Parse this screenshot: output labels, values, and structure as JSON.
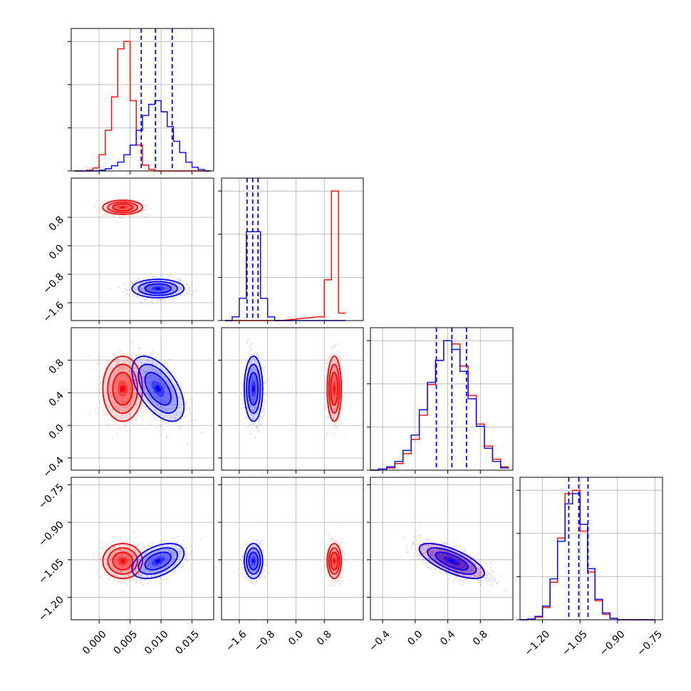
{
  "chart_data": {
    "type": "corner",
    "grid": true,
    "series": [
      {
        "color": "#0000ff",
        "quantile_lines": [
          [
            0.0068,
            0.0091,
            0.0118
          ],
          [
            -1.38,
            -1.22,
            -1.07
          ],
          [
            0.26,
            0.45,
            0.63
          ],
          [
            -1.095,
            -1.055,
            -1.018
          ]
        ]
      },
      {
        "color": "#ff0000"
      }
    ],
    "panels": {
      "ticks": {
        "p0": [
          0.0,
          0.005,
          0.01,
          0.015
        ],
        "p1": [
          -1.6,
          -0.8,
          0.0,
          0.8
        ],
        "p2": [
          -0.4,
          0.0,
          0.4,
          0.8
        ],
        "p3": [
          -1.2,
          -1.05,
          -0.9,
          -0.75
        ]
      },
      "tick_labels": {
        "p0": [
          "0.000",
          "0.005",
          "0.010",
          "0.015"
        ],
        "p1": [
          "−1.6",
          "−0.8",
          "0.0",
          "0.8"
        ],
        "p2": [
          "−0.4",
          "0.0",
          "0.4",
          "0.8"
        ],
        "p3": [
          "−1.20",
          "−1.05",
          "−0.90",
          "−0.75"
        ]
      },
      "ranges": {
        "p0": [
          -0.0045,
          0.0185
        ],
        "p1": [
          -2.1,
          1.9
        ],
        "p2": [
          -0.55,
          1.2
        ],
        "p3": [
          -1.29,
          -0.72
        ]
      },
      "diagonal_hist": [
        {
          "bins": [
            -0.0035,
            -0.0025,
            -0.0015,
            -0.0005,
            0.0005,
            0.0015,
            0.0025,
            0.0035,
            0.0045,
            0.0055,
            0.0065,
            0.0075,
            0.0085,
            0.0095,
            0.0105,
            0.0115,
            0.0125,
            0.0135,
            0.0145,
            0.0155,
            0.0165,
            0.0175
          ],
          "blue": [
            0,
            0,
            0,
            0,
            1,
            3,
            7,
            12,
            22,
            35,
            55,
            75,
            90,
            95,
            80,
            60,
            40,
            25,
            12,
            5,
            2,
            0
          ],
          "red": [
            0,
            0,
            1,
            4,
            22,
            55,
            100,
            165,
            175,
            95,
            35,
            8,
            2,
            0,
            0,
            0,
            0,
            0,
            0,
            0,
            0,
            0
          ]
        },
        {
          "bins": [
            -1.9,
            -1.7,
            -1.5,
            -1.3,
            -1.1,
            -0.9,
            -0.7,
            -0.5,
            0.7,
            0.9,
            1.1,
            1.3
          ],
          "blue": [
            0,
            5,
            30,
            120,
            120,
            30,
            5,
            0,
            0,
            0,
            0,
            0
          ],
          "red": [
            0,
            0,
            0,
            0,
            0,
            0,
            0,
            0,
            5,
            55,
            175,
            10
          ]
        },
        {
          "bins": [
            -0.5,
            -0.4,
            -0.3,
            -0.2,
            -0.1,
            0.0,
            0.1,
            0.2,
            0.3,
            0.4,
            0.5,
            0.6,
            0.7,
            0.8,
            0.9,
            1.0,
            1.1
          ],
          "blue": [
            0,
            1,
            3,
            8,
            18,
            32,
            55,
            80,
            100,
            118,
            110,
            90,
            65,
            40,
            20,
            8,
            2
          ],
          "red": [
            0,
            1,
            2,
            6,
            15,
            28,
            50,
            78,
            100,
            118,
            115,
            95,
            68,
            42,
            22,
            10,
            3
          ]
        },
        {
          "bins": [
            -1.275,
            -1.245,
            -1.215,
            -1.185,
            -1.155,
            -1.125,
            -1.095,
            -1.065,
            -1.035,
            -1.005,
            -0.975,
            -0.945,
            -0.915,
            -0.885,
            -0.855,
            -0.825,
            -0.795,
            -0.765
          ],
          "blue": [
            0,
            1,
            5,
            20,
            60,
            115,
            170,
            185,
            140,
            75,
            30,
            10,
            2,
            0,
            0,
            0,
            0,
            0
          ],
          "red": [
            0,
            1,
            4,
            18,
            55,
            120,
            185,
            190,
            130,
            70,
            28,
            8,
            2,
            0,
            0,
            0,
            0,
            0
          ]
        }
      ],
      "clusters": {
        "p0": {
          "blue": [
            0.0095,
            0.0021
          ],
          "red": [
            0.0038,
            0.0016
          ]
        },
        "p1": {
          "blue": [
            -1.2,
            0.13
          ],
          "red": [
            1.08,
            0.1
          ]
        },
        "p2": {
          "blue": [
            0.45,
            0.2
          ],
          "red": [
            0.45,
            0.2
          ]
        },
        "p3": {
          "blue": [
            -1.055,
            0.035
          ],
          "red": [
            -1.055,
            0.035
          ]
        }
      }
    }
  }
}
